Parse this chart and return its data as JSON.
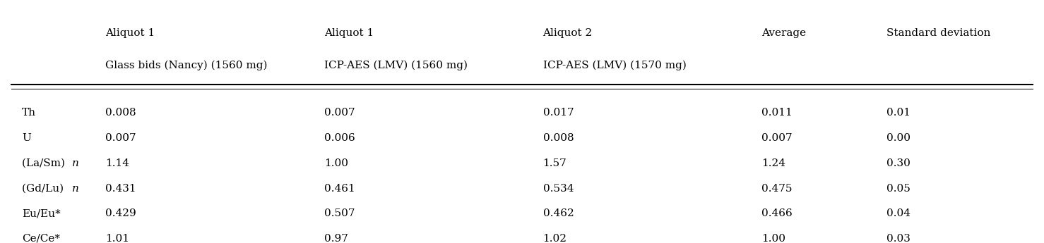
{
  "col_headers_line1": [
    "",
    "Aliquot 1",
    "Aliquot 1",
    "Aliquot 2",
    "Average",
    "Standard deviation"
  ],
  "col_headers_line2": [
    "",
    "Glass bids (Nancy) (1560 mg)",
    "ICP-AES (LMV) (1560 mg)",
    "ICP-AES (LMV) (1570 mg)",
    "",
    ""
  ],
  "rows": [
    [
      "Th",
      "0.008",
      "0.007",
      "0.017",
      "0.011",
      "0.01"
    ],
    [
      "U",
      "0.007",
      "0.006",
      "0.008",
      "0.007",
      "0.00"
    ],
    [
      "(La/Sm) n",
      "1.14",
      "1.00",
      "1.57",
      "1.24",
      "0.30"
    ],
    [
      "(Gd/Lu) n",
      "0.431",
      "0.461",
      "0.534",
      "0.475",
      "0.05"
    ],
    [
      "Eu/Eu*",
      "0.429",
      "0.507",
      "0.462",
      "0.466",
      "0.04"
    ],
    [
      "Ce/Ce*",
      "1.01",
      "0.97",
      "1.02",
      "1.00",
      "0.03"
    ]
  ],
  "italic_rows": [
    2,
    3
  ],
  "italic_col0": [
    2,
    3
  ],
  "background_color": "#ffffff",
  "text_color": "#000000",
  "font_size": 11,
  "header_font_size": 11
}
